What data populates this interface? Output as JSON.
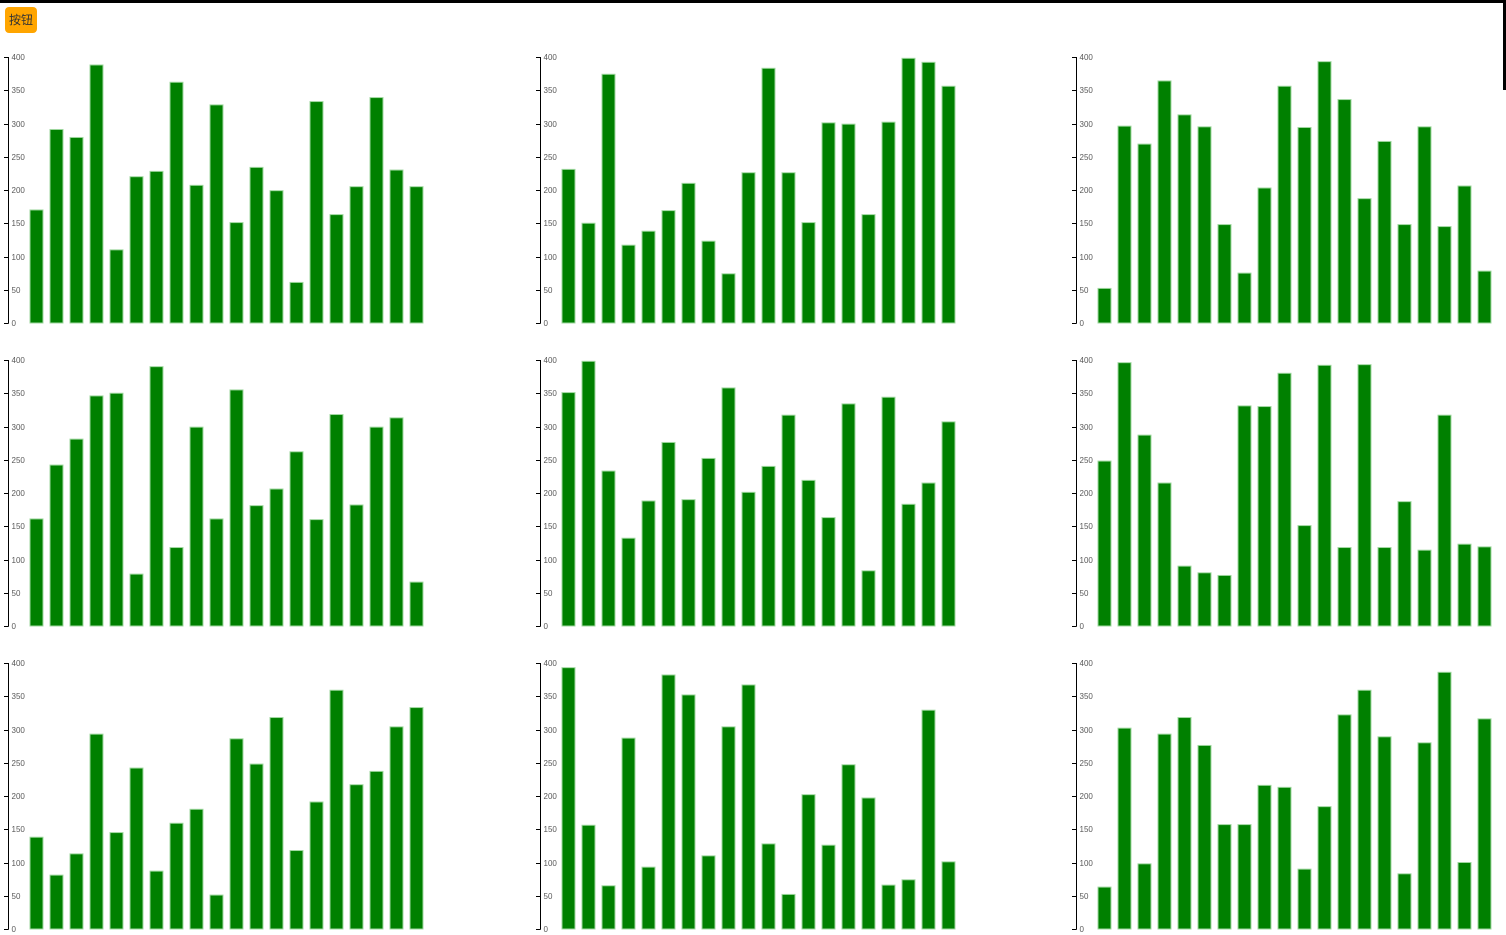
{
  "page": {
    "background_color": "#ffffff",
    "edge_border_color": "#000000"
  },
  "toolbar": {
    "button_label": "按钮",
    "button_bg_color": "#FFA500",
    "button_text_color": "#333333"
  },
  "chart_style": {
    "bar_fill": "#008000",
    "bar_stroke": "#9fd79f",
    "axis_line_color": "#000000",
    "tick_label_color": "#595959"
  },
  "chart_data": [
    {
      "type": "bar",
      "position": "row1-col1",
      "values": [
        170,
        291,
        279,
        388,
        110,
        220,
        228,
        362,
        207,
        328,
        151,
        234,
        199,
        61,
        333,
        163,
        205,
        339,
        230,
        205
      ],
      "ylim": [
        0,
        400
      ],
      "yticks": [
        0,
        50,
        100,
        150,
        200,
        250,
        300,
        350,
        400
      ],
      "grid": false,
      "legend": null,
      "title": ""
    },
    {
      "type": "bar",
      "position": "row1-col2",
      "values": [
        231,
        150,
        374,
        117,
        138,
        169,
        210,
        123,
        74,
        226,
        383,
        226,
        151,
        301,
        299,
        163,
        302,
        398,
        392,
        356
      ],
      "ylim": [
        0,
        400
      ],
      "yticks": [
        0,
        50,
        100,
        150,
        200,
        250,
        300,
        350,
        400
      ],
      "grid": false,
      "legend": null,
      "title": ""
    },
    {
      "type": "bar",
      "position": "row1-col3",
      "values": [
        52,
        296,
        269,
        364,
        313,
        295,
        148,
        75,
        203,
        356,
        294,
        393,
        336,
        187,
        273,
        148,
        295,
        145,
        206,
        78
      ],
      "ylim": [
        0,
        400
      ],
      "yticks": [
        0,
        50,
        100,
        150,
        200,
        250,
        300,
        350,
        400
      ],
      "grid": false,
      "legend": null,
      "title": ""
    },
    {
      "type": "bar",
      "position": "row2-col1",
      "values": [
        161,
        242,
        281,
        346,
        350,
        78,
        390,
        118,
        299,
        161,
        355,
        181,
        206,
        262,
        160,
        318,
        182,
        299,
        313,
        66
      ],
      "ylim": [
        0,
        400
      ],
      "yticks": [
        0,
        50,
        100,
        150,
        200,
        250,
        300,
        350,
        400
      ],
      "grid": false,
      "legend": null,
      "title": ""
    },
    {
      "type": "bar",
      "position": "row2-col2",
      "values": [
        351,
        398,
        233,
        132,
        188,
        276,
        190,
        252,
        358,
        201,
        240,
        317,
        219,
        163,
        334,
        83,
        344,
        183,
        215,
        307
      ],
      "ylim": [
        0,
        400
      ],
      "yticks": [
        0,
        50,
        100,
        150,
        200,
        250,
        300,
        350,
        400
      ],
      "grid": false,
      "legend": null,
      "title": ""
    },
    {
      "type": "bar",
      "position": "row2-col3",
      "values": [
        248,
        396,
        287,
        215,
        90,
        80,
        76,
        331,
        330,
        380,
        151,
        392,
        118,
        393,
        118,
        187,
        114,
        317,
        123,
        119
      ],
      "ylim": [
        0,
        400
      ],
      "yticks": [
        0,
        50,
        100,
        150,
        200,
        250,
        300,
        350,
        400
      ],
      "grid": false,
      "legend": null,
      "title": ""
    },
    {
      "type": "bar",
      "position": "row3-col1",
      "values": [
        138,
        81,
        113,
        293,
        145,
        242,
        87,
        159,
        180,
        51,
        286,
        248,
        318,
        118,
        191,
        359,
        217,
        237,
        304,
        333
      ],
      "ylim": [
        0,
        400
      ],
      "yticks": [
        0,
        50,
        100,
        150,
        200,
        250,
        300,
        350,
        400
      ],
      "grid": false,
      "legend": null,
      "title": ""
    },
    {
      "type": "bar",
      "position": "row3-col2",
      "values": [
        393,
        156,
        65,
        287,
        93,
        382,
        352,
        110,
        304,
        367,
        128,
        52,
        202,
        126,
        247,
        197,
        66,
        74,
        329,
        101
      ],
      "ylim": [
        0,
        400
      ],
      "yticks": [
        0,
        50,
        100,
        150,
        200,
        250,
        300,
        350,
        400
      ],
      "grid": false,
      "legend": null,
      "title": ""
    },
    {
      "type": "bar",
      "position": "row3-col3",
      "values": [
        63,
        302,
        98,
        293,
        318,
        276,
        157,
        157,
        216,
        213,
        90,
        184,
        322,
        359,
        289,
        83,
        280,
        386,
        100,
        316
      ],
      "ylim": [
        0,
        400
      ],
      "yticks": [
        0,
        50,
        100,
        150,
        200,
        250,
        300,
        350,
        400
      ],
      "grid": false,
      "legend": null,
      "title": ""
    }
  ]
}
